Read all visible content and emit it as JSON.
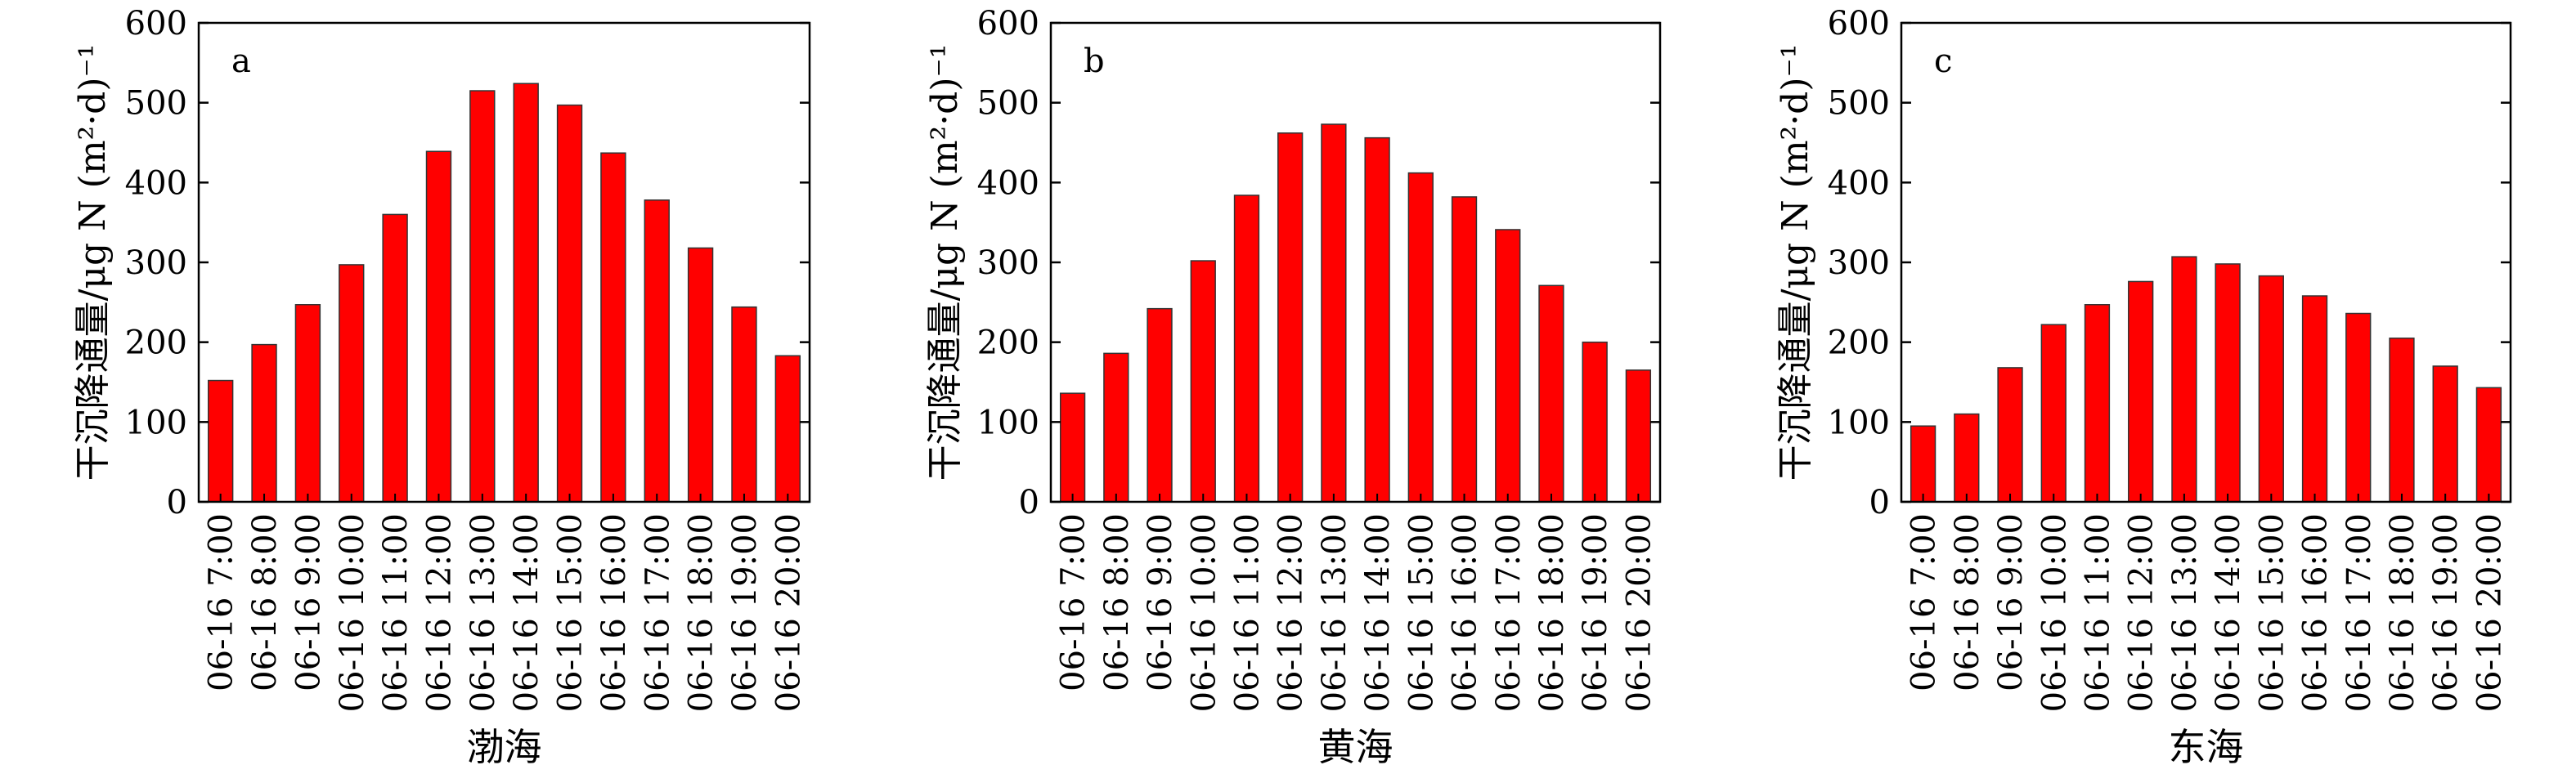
{
  "chart_data": [
    {
      "type": "bar",
      "panel_label": "a",
      "xlabel": "渤海",
      "ylabel": "干沉降通量/μg N (m²·d)⁻¹",
      "ylim": [
        0,
        600
      ],
      "yticks": [
        "0",
        "100",
        "200",
        "300",
        "400",
        "500",
        "600"
      ],
      "categories": [
        "06-16 7:00",
        "06-16 8:00",
        "06-16 9:00",
        "06-16 10:00",
        "06-16 11:00",
        "06-16 12:00",
        "06-16 13:00",
        "06-16 14:00",
        "06-16 15:00",
        "06-16 16:00",
        "06-16 17:00",
        "06-16 18:00",
        "06-16 19:00",
        "06-16 20:00"
      ],
      "values": [
        152,
        197,
        247,
        297,
        360,
        439,
        515,
        524,
        497,
        437,
        378,
        318,
        244,
        183
      ],
      "bar_color": "#ff0000",
      "grid": false
    },
    {
      "type": "bar",
      "panel_label": "b",
      "xlabel": "黄海",
      "ylabel": "干沉降通量/μg N (m²·d)⁻¹",
      "ylim": [
        0,
        600
      ],
      "yticks": [
        "0",
        "100",
        "200",
        "300",
        "400",
        "500",
        "600"
      ],
      "categories": [
        "06-16 7:00",
        "06-16 8:00",
        "06-16 9:00",
        "06-16 10:00",
        "06-16 11:00",
        "06-16 12:00",
        "06-16 13:00",
        "06-16 14:00",
        "06-16 15:00",
        "06-16 16:00",
        "06-16 17:00",
        "06-16 18:00",
        "06-16 19:00",
        "06-16 20:00"
      ],
      "values": [
        136,
        186,
        242,
        302,
        384,
        462,
        473,
        456,
        412,
        382,
        341,
        271,
        200,
        165
      ],
      "bar_color": "#ff0000",
      "grid": false
    },
    {
      "type": "bar",
      "panel_label": "c",
      "xlabel": "东海",
      "ylabel": "干沉降通量/μg N (m²·d)⁻¹",
      "ylim": [
        0,
        600
      ],
      "yticks": [
        "0",
        "100",
        "200",
        "300",
        "400",
        "500",
        "600"
      ],
      "categories": [
        "06-16 7:00",
        "06-16 8:00",
        "06-16 9:00",
        "06-16 10:00",
        "06-16 11:00",
        "06-16 12:00",
        "06-16 13:00",
        "06-16 14:00",
        "06-16 15:00",
        "06-16 16:00",
        "06-16 17:00",
        "06-16 18:00",
        "06-16 19:00",
        "06-16 20:00"
      ],
      "values": [
        95,
        110,
        168,
        222,
        247,
        276,
        307,
        298,
        283,
        258,
        236,
        205,
        170,
        143
      ],
      "bar_color": "#ff0000",
      "grid": false
    }
  ]
}
